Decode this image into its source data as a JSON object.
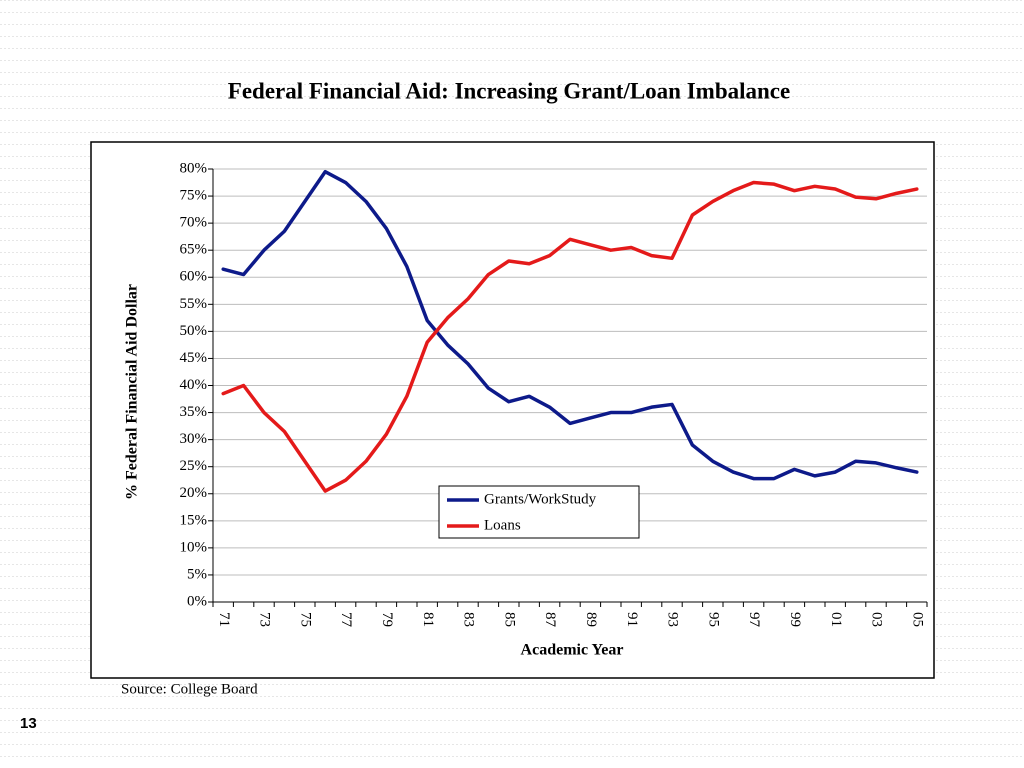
{
  "page_number": "13",
  "source": "Source: College Board",
  "chart_data": {
    "type": "line",
    "title": "Federal Financial Aid: Increasing Grant/Loan Imbalance",
    "x_label": "Academic Year",
    "y_label": "% Federal Financial Aid Dollar",
    "categories": [
      "71",
      null,
      "73",
      null,
      "75",
      null,
      "77",
      null,
      "79",
      null,
      "81",
      null,
      "83",
      null,
      "85",
      null,
      "87",
      null,
      "89",
      null,
      "91",
      null,
      "93",
      null,
      "95",
      null,
      "97",
      null,
      "99",
      null,
      "01",
      null,
      "03",
      null,
      "05"
    ],
    "series": [
      {
        "name": "Grants/WorkStudy",
        "color": "#0d1a8a",
        "values": [
          61.5,
          60.5,
          65,
          68.5,
          74,
          79.5,
          77.5,
          74,
          69,
          62,
          52,
          47.5,
          44,
          39.5,
          37,
          38,
          36,
          33,
          34,
          35,
          35,
          36,
          36.5,
          29,
          26,
          24,
          22.8,
          22.8,
          24.5,
          23.3,
          24,
          26,
          25.7,
          24.8,
          24
        ]
      },
      {
        "name": "Loans",
        "color": "#e41a1a",
        "values": [
          38.5,
          40,
          35,
          31.5,
          26,
          20.5,
          22.5,
          26,
          31,
          38,
          48,
          52.5,
          56,
          60.5,
          63,
          62.5,
          64,
          67,
          66,
          65,
          65.5,
          64,
          63.5,
          71.5,
          74,
          76,
          77.5,
          77.2,
          76,
          76.8,
          76.3,
          74.8,
          74.5,
          75.5,
          76.3
        ]
      }
    ],
    "ylim": [
      0,
      80
    ],
    "yticks": [
      {
        "value": 0,
        "label": "0%"
      },
      {
        "value": 5,
        "label": "5%"
      },
      {
        "value": 10,
        "label": "10%"
      },
      {
        "value": 15,
        "label": "15%"
      },
      {
        "value": 20,
        "label": "20%"
      },
      {
        "value": 25,
        "label": "25%"
      },
      {
        "value": 30,
        "label": "30%"
      },
      {
        "value": 35,
        "label": "35%"
      },
      {
        "value": 40,
        "label": "40%"
      },
      {
        "value": 45,
        "label": "45%"
      },
      {
        "value": 50,
        "label": "50%"
      },
      {
        "value": 55,
        "label": "55%"
      },
      {
        "value": 60,
        "label": "60%"
      },
      {
        "value": 65,
        "label": "65%"
      },
      {
        "value": 70,
        "label": "70%"
      },
      {
        "value": 75,
        "label": "75%"
      },
      {
        "value": 80,
        "label": "80%"
      }
    ],
    "grid": true,
    "legend": "inside-bottom-right"
  }
}
